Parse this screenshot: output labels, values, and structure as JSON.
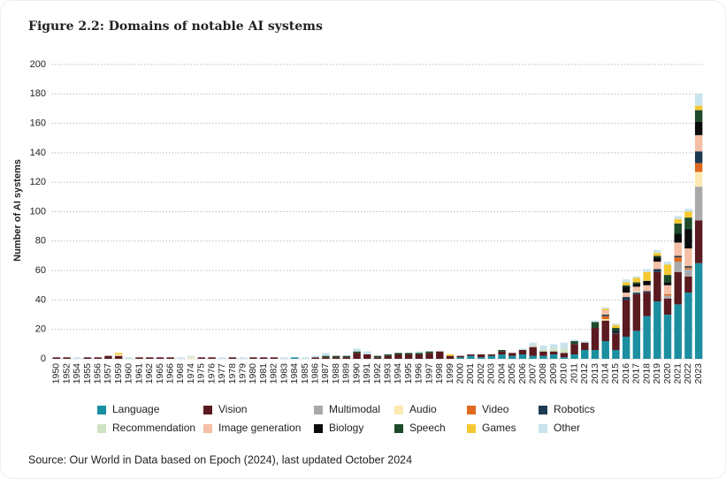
{
  "chart_data": {
    "type": "stacked_bar",
    "title": "Figure 2.2: Domains of notable AI systems",
    "y_label": "Number of AI systems",
    "source": "Source: Our World in Data based on Epoch (2024), last updated October 2024",
    "categories": [
      "1950",
      "1952",
      "1954",
      "1955",
      "1956",
      "1957",
      "1959",
      "1960",
      "1961",
      "1962",
      "1965",
      "1966",
      "1968",
      "1974",
      "1975",
      "1976",
      "1977",
      "1978",
      "1979",
      "1980",
      "1981",
      "1982",
      "1983",
      "1984",
      "1985",
      "1986",
      "1987",
      "1988",
      "1989",
      "1990",
      "1991",
      "1992",
      "1993",
      "1994",
      "1995",
      "1996",
      "1997",
      "1998",
      "1999",
      "2000",
      "2001",
      "2002",
      "2003",
      "2004",
      "2005",
      "2006",
      "2007",
      "2008",
      "2009",
      "2010",
      "2011",
      "2012",
      "2013",
      "2014",
      "2015",
      "2016",
      "2017",
      "2018",
      "2019",
      "2020",
      "2021",
      "2022",
      "2023"
    ],
    "ylim": [
      0,
      200
    ],
    "yticks": [
      0,
      20,
      40,
      60,
      80,
      100,
      120,
      140,
      160,
      180,
      200
    ],
    "grid": true,
    "series": [
      {
        "name": "Language",
        "color": "#1b8fa0",
        "values": [
          0,
          0,
          0,
          0,
          0,
          0,
          0,
          0,
          0,
          0,
          0,
          0,
          0,
          0,
          0,
          0,
          0,
          0,
          0,
          0,
          0,
          0,
          0,
          1,
          0,
          0,
          0,
          0,
          0,
          0,
          0,
          0,
          0,
          0,
          0,
          0,
          0,
          0,
          0,
          1,
          2,
          1,
          2,
          3,
          2,
          3,
          2,
          2,
          3,
          1,
          3,
          6,
          6,
          12,
          6,
          15,
          19,
          29,
          39,
          30,
          37,
          45,
          65
        ]
      },
      {
        "name": "Vision",
        "color": "#5a1a20",
        "values": [
          1,
          1,
          0,
          1,
          1,
          2,
          2,
          0,
          1,
          1,
          1,
          1,
          0,
          0,
          1,
          1,
          0,
          1,
          0,
          1,
          1,
          1,
          0,
          0,
          0,
          1,
          1,
          1,
          1,
          4,
          3,
          1,
          2,
          3,
          3,
          3,
          4,
          5,
          2,
          1,
          1,
          2,
          1,
          2,
          2,
          3,
          6,
          3,
          2,
          3,
          7,
          5,
          15,
          14,
          11,
          25,
          25,
          16,
          20,
          11,
          22,
          11,
          29
        ]
      },
      {
        "name": "Multimodal",
        "color": "#a9a9a9",
        "values": [
          0,
          0,
          0,
          0,
          0,
          0,
          0,
          0,
          0,
          0,
          0,
          0,
          0,
          0,
          0,
          0,
          0,
          0,
          0,
          0,
          0,
          0,
          0,
          0,
          0,
          0,
          0,
          0,
          0,
          0,
          0,
          0,
          0,
          0,
          0,
          0,
          0,
          0,
          0,
          0,
          0,
          0,
          0,
          0,
          0,
          0,
          0,
          0,
          0,
          0,
          0,
          0,
          0,
          0,
          0,
          0,
          0,
          0,
          0,
          2,
          7,
          5,
          23
        ]
      },
      {
        "name": "Audio",
        "color": "#fde8b2",
        "values": [
          0,
          0,
          0,
          0,
          0,
          0,
          1,
          0,
          0,
          0,
          0,
          0,
          0,
          1,
          0,
          0,
          0,
          0,
          0,
          0,
          0,
          0,
          0,
          0,
          0,
          0,
          0,
          0,
          0,
          0,
          0,
          0,
          0,
          0,
          0,
          0,
          0,
          0,
          0,
          0,
          0,
          0,
          0,
          0,
          0,
          0,
          0,
          0,
          0,
          0,
          0,
          0,
          0,
          1,
          0,
          0,
          0,
          0,
          0,
          0,
          0,
          0,
          10
        ]
      },
      {
        "name": "Video",
        "color": "#e0691f",
        "values": [
          0,
          0,
          0,
          0,
          0,
          0,
          0,
          0,
          0,
          0,
          0,
          0,
          0,
          0,
          0,
          0,
          0,
          0,
          0,
          0,
          0,
          0,
          0,
          0,
          0,
          0,
          0,
          0,
          0,
          0,
          0,
          0,
          0,
          0,
          0,
          0,
          0,
          0,
          0,
          0,
          0,
          0,
          0,
          0,
          0,
          0,
          0,
          0,
          0,
          0,
          0,
          0,
          0,
          2,
          0,
          0,
          0,
          0,
          0,
          1,
          3,
          1,
          6
        ]
      },
      {
        "name": "Robotics",
        "color": "#1c3a52",
        "values": [
          0,
          0,
          0,
          0,
          0,
          0,
          0,
          0,
          0,
          0,
          0,
          0,
          0,
          0,
          0,
          0,
          0,
          0,
          0,
          0,
          0,
          0,
          0,
          0,
          0,
          0,
          0,
          0,
          0,
          0,
          0,
          0,
          0,
          0,
          0,
          0,
          0,
          0,
          0,
          0,
          0,
          0,
          0,
          0,
          0,
          0,
          0,
          0,
          0,
          0,
          0,
          0,
          0,
          1,
          1,
          2,
          1,
          1,
          2,
          0,
          1,
          1,
          8
        ]
      },
      {
        "name": "Recommendation",
        "color": "#cfe3c4",
        "values": [
          0,
          0,
          0,
          0,
          0,
          0,
          0,
          0,
          0,
          0,
          0,
          0,
          0,
          0,
          0,
          0,
          0,
          0,
          0,
          0,
          0,
          0,
          0,
          0,
          0,
          0,
          0,
          0,
          0,
          0,
          0,
          0,
          0,
          0,
          0,
          0,
          0,
          0,
          0,
          0,
          0,
          0,
          0,
          0,
          0,
          0,
          1,
          1,
          2,
          3,
          0,
          0,
          0,
          0,
          0,
          0,
          1,
          0,
          0,
          0,
          0,
          0,
          0
        ]
      },
      {
        "name": "Image generation",
        "color": "#f4bfa6",
        "values": [
          0,
          0,
          0,
          0,
          0,
          0,
          0,
          0,
          0,
          0,
          0,
          0,
          0,
          0,
          0,
          0,
          0,
          0,
          0,
          0,
          0,
          0,
          0,
          0,
          0,
          0,
          0,
          0,
          0,
          0,
          0,
          0,
          0,
          0,
          0,
          0,
          0,
          0,
          0,
          0,
          0,
          0,
          0,
          0,
          0,
          0,
          0,
          0,
          0,
          0,
          0,
          0,
          0,
          3,
          0,
          3,
          3,
          4,
          5,
          6,
          9,
          12,
          11
        ]
      },
      {
        "name": "Biology",
        "color": "#0b0b0b",
        "values": [
          0,
          0,
          0,
          0,
          0,
          0,
          0,
          0,
          0,
          0,
          0,
          0,
          0,
          0,
          0,
          0,
          0,
          0,
          0,
          0,
          0,
          0,
          0,
          0,
          0,
          0,
          0,
          0,
          0,
          0,
          0,
          0,
          0,
          0,
          0,
          0,
          0,
          0,
          0,
          0,
          0,
          0,
          0,
          0,
          0,
          0,
          0,
          0,
          0,
          0,
          0,
          0,
          0,
          0,
          1,
          4,
          2,
          3,
          3,
          2,
          6,
          13,
          9
        ]
      },
      {
        "name": "Speech",
        "color": "#1d4a2b",
        "values": [
          0,
          0,
          0,
          0,
          0,
          0,
          0,
          0,
          0,
          0,
          0,
          0,
          0,
          0,
          0,
          0,
          0,
          0,
          0,
          0,
          0,
          0,
          0,
          0,
          0,
          0,
          1,
          1,
          1,
          1,
          0,
          1,
          1,
          1,
          1,
          1,
          1,
          0,
          0,
          0,
          0,
          0,
          0,
          1,
          0,
          0,
          0,
          0,
          0,
          0,
          2,
          0,
          4,
          0,
          2,
          1,
          1,
          0,
          1,
          5,
          7,
          8,
          8
        ]
      },
      {
        "name": "Games",
        "color": "#f6c933",
        "values": [
          0,
          0,
          0,
          0,
          0,
          0,
          1,
          0,
          0,
          0,
          0,
          0,
          0,
          0,
          0,
          0,
          0,
          0,
          0,
          0,
          0,
          0,
          0,
          0,
          0,
          0,
          0,
          0,
          0,
          0,
          0,
          0,
          0,
          0,
          0,
          0,
          0,
          0,
          1,
          0,
          0,
          0,
          0,
          0,
          0,
          0,
          0,
          0,
          0,
          0,
          0,
          0,
          0,
          1,
          2,
          2,
          3,
          6,
          2,
          7,
          3,
          4,
          3
        ]
      },
      {
        "name": "Other",
        "color": "#c8e3eb",
        "values": [
          0,
          0,
          1,
          0,
          0,
          0,
          0,
          1,
          0,
          0,
          0,
          0,
          1,
          1,
          0,
          0,
          1,
          0,
          1,
          0,
          0,
          0,
          1,
          0,
          1,
          1,
          2,
          0,
          0,
          2,
          2,
          0,
          0,
          0,
          0,
          1,
          0,
          0,
          0,
          0,
          0,
          0,
          0,
          0,
          0,
          1,
          2,
          3,
          3,
          4,
          1,
          1,
          1,
          1,
          1,
          2,
          1,
          2,
          2,
          2,
          2,
          2,
          8
        ]
      }
    ]
  }
}
